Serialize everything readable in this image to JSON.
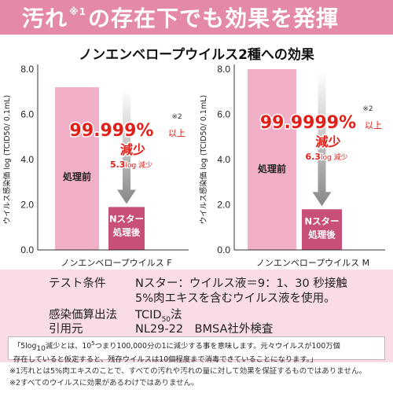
{
  "banner": {
    "part1": "汚れ",
    "note": "※1",
    "part2": "の存在下でも効果を発揮"
  },
  "subtitle": "ノンエンベロープウイルス2種への効果",
  "colors": {
    "pink_bar": "#f1b0c7",
    "dark_bar": "#c74f78",
    "red_text": "#e0201a",
    "banner": "#e58aa6",
    "info_bg": "#f9dce6"
  },
  "chart_data": [
    {
      "type": "bar",
      "categories": [
        "処理前",
        "Nスター処理後"
      ],
      "values": [
        7.2,
        1.9
      ],
      "xlabel": "ノンエンベロープウイルス F",
      "ylabel": "ウイルス感染価 log (TCID50/ 0.1mL)",
      "ylim": [
        0,
        8
      ],
      "yticks": [
        "0.0",
        "2.0",
        "4.0",
        "6.0",
        "8.0"
      ],
      "reduction_percent": "99.999%",
      "reduction_suffix": "以上",
      "reduction_word": "減少",
      "reduction_log": "5.3",
      "reduction_log_unit": "log",
      "reduction_log_word": "減少",
      "note": "※2"
    },
    {
      "type": "bar",
      "categories": [
        "処理前",
        "Nスター処理後"
      ],
      "values": [
        8.0,
        1.8
      ],
      "xlabel": "ノンエンベロープウイルス M",
      "ylabel": "ウイルス感染価 log (TCID50/ 0.1mL)",
      "ylim": [
        0,
        8
      ],
      "yticks": [
        "0.0",
        "2.0",
        "4.0",
        "6.0",
        "8.0"
      ],
      "reduction_percent": "99.9999%",
      "reduction_suffix": "以上",
      "reduction_word": "減少",
      "reduction_log": "6.3",
      "reduction_log_unit": "log",
      "reduction_log_word": "減少",
      "note": "※2"
    }
  ],
  "bar_labels": {
    "before": "処理前",
    "after_line1": "Nスター",
    "after_line2": "処理後"
  },
  "info": {
    "test_label": "テスト条件",
    "test_value": "Nスター：ウイルス液＝9：1、30 秒接触",
    "test_value2": "5%肉エキスを含むウイルス液を使用。",
    "calc_label": "感染価算出法",
    "calc_value_pre": "TCID",
    "calc_value_sub": "50",
    "calc_value_post": "法",
    "cite_label": "引用元",
    "cite_value": "NL29-22　BMSA社外検査"
  },
  "definition": {
    "part1": "「5log",
    "sub": "10",
    "part2": "減少とは、10",
    "sup": "5",
    "part3": "つまり100,000分の1に減少する事を意味します。元々ウイルスが100万個",
    "line2": "存在していると仮定すると、残存ウイルスは10個程度まで消毒できていることになります。」"
  },
  "footnotes": [
    "※1汚れとは5%肉エキスのことで、すべての汚れや汚れの量に対して効果を保証するものではありません。",
    "※2すべてのウイルスに効果があるわけではありません。"
  ]
}
